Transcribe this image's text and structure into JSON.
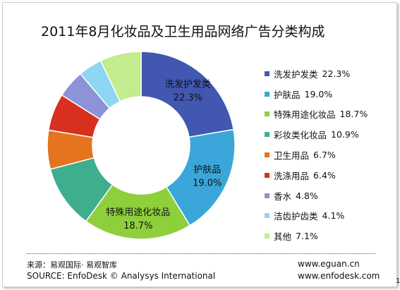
{
  "chart_data": {
    "type": "pie",
    "title": "2011年8月化妆品及卫生用品网络广告分类构成",
    "unit": "%",
    "slices": [
      {
        "label": "洗发护发类",
        "value": 22.3,
        "color": "#4157b0"
      },
      {
        "label": "护肤品",
        "value": 19.0,
        "color": "#3aa6d9"
      },
      {
        "label": "特殊用途化妆品",
        "value": 18.7,
        "color": "#8ecf3c"
      },
      {
        "label": "彩妆类化妆品",
        "value": 10.9,
        "color": "#3fae8e"
      },
      {
        "label": "卫生用品",
        "value": 6.7,
        "color": "#e5741f"
      },
      {
        "label": "洗涤用品",
        "value": 6.4,
        "color": "#d8301e"
      },
      {
        "label": "香水",
        "value": 4.8,
        "color": "#8d93d6"
      },
      {
        "label": "洁齿护齿类",
        "value": 4.1,
        "color": "#8fd6f2"
      },
      {
        "label": "其他",
        "value": 7.1,
        "color": "#c2ec8e"
      }
    ],
    "data_labels": [
      {
        "name": "洗发护发类",
        "value": "22.3%"
      },
      {
        "name": "护肤品",
        "value": "19.0%"
      },
      {
        "name": "特殊用途化妆品",
        "value": "18.7%"
      }
    ],
    "legend_position": "right"
  },
  "footer": {
    "source_cn": "来源：易观国际· 易观智库",
    "source_en": "SOURCE: EnfoDesk © Analysys International",
    "url1": "www.eguan.cn",
    "url2": "www.enfodesk.com"
  },
  "corner_mark": "1"
}
